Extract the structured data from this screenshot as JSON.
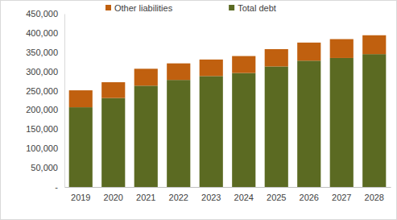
{
  "chart_data": {
    "type": "bar",
    "stacked": true,
    "grid": false,
    "legend": "top",
    "categories": [
      "2019",
      "2020",
      "2021",
      "2022",
      "2023",
      "2024",
      "2025",
      "2026",
      "2027",
      "2028"
    ],
    "series": [
      {
        "name": "Total debt",
        "color": "#5b6a22",
        "values": [
          207000,
          231000,
          263000,
          278000,
          288000,
          296000,
          313000,
          328000,
          335000,
          345000
        ]
      },
      {
        "name": "Other liabilities",
        "color": "#c0600f",
        "values": [
          44000,
          41000,
          44000,
          43000,
          43000,
          44000,
          45000,
          47000,
          49000,
          49000
        ]
      }
    ],
    "ylim": [
      0,
      450000
    ],
    "yticks": [
      {
        "value": 0,
        "label": "-"
      },
      {
        "value": 50000,
        "label": "50,000"
      },
      {
        "value": 100000,
        "label": "100,000"
      },
      {
        "value": 150000,
        "label": "150,000"
      },
      {
        "value": 200000,
        "label": "200,000"
      },
      {
        "value": 250000,
        "label": "250,000"
      },
      {
        "value": 300000,
        "label": "300,000"
      },
      {
        "value": 350000,
        "label": "350,000"
      },
      {
        "value": 400000,
        "label": "400,000"
      },
      {
        "value": 450000,
        "label": "450,000"
      }
    ]
  }
}
